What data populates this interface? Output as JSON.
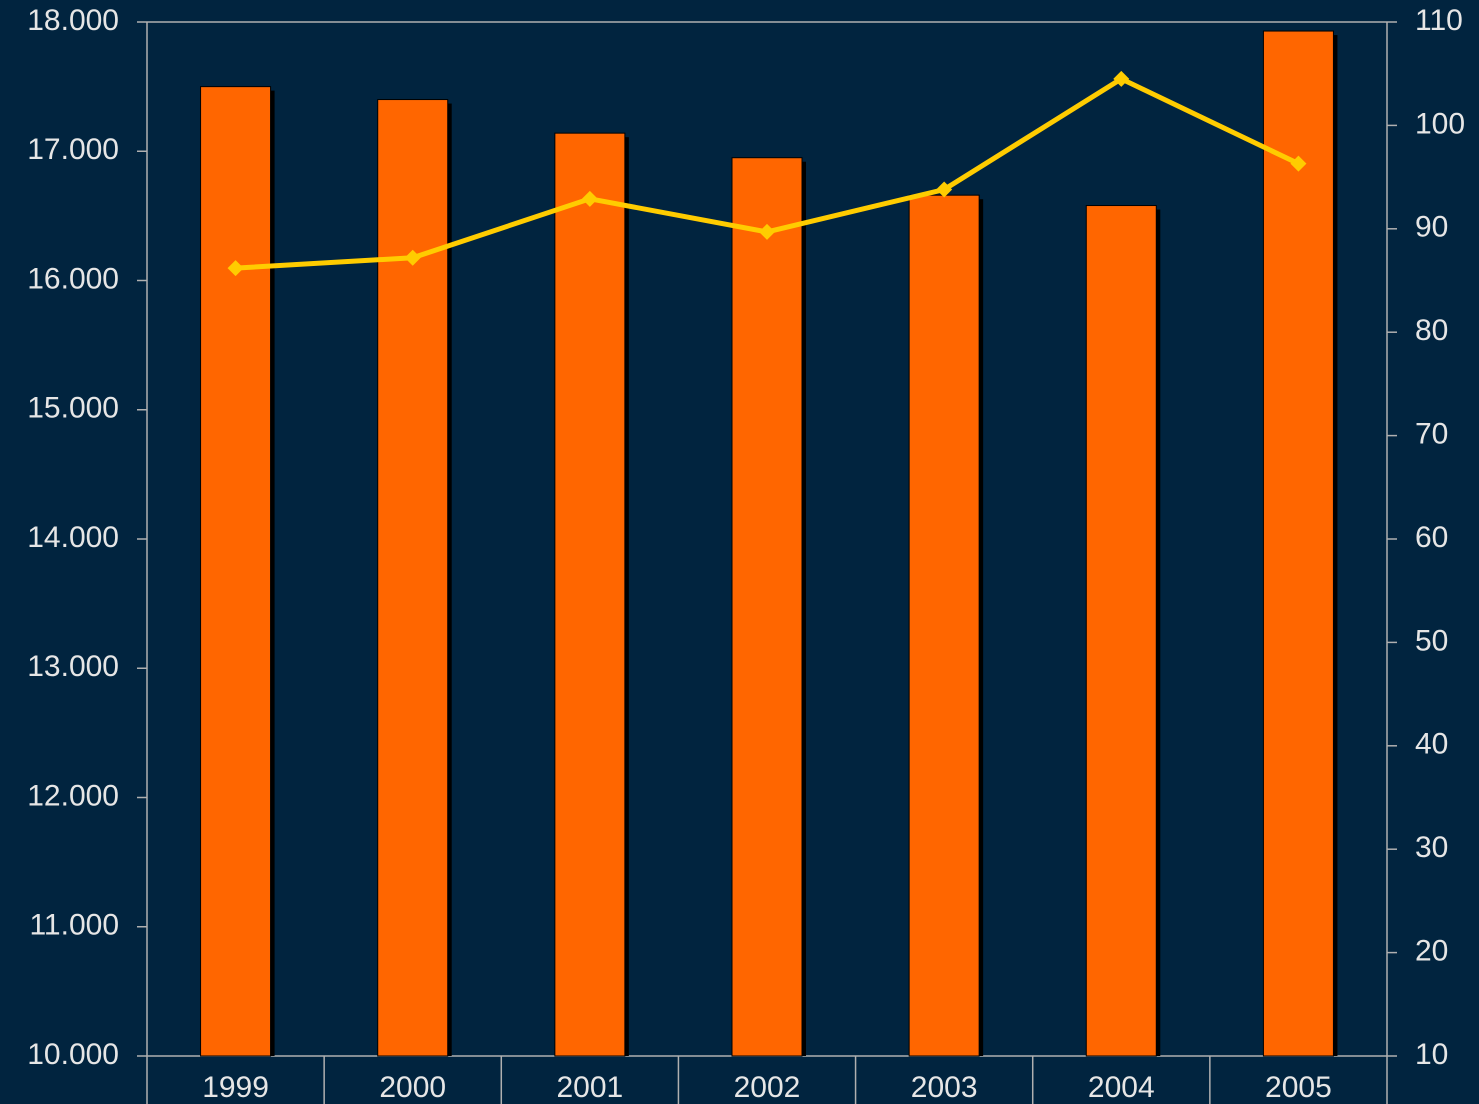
{
  "chart_data": {
    "type": "bar-line",
    "categories": [
      "1999",
      "2000",
      "2001",
      "2002",
      "2003",
      "2004",
      "2005"
    ],
    "series": [
      {
        "type": "bar",
        "color": "#ff6600",
        "values": [
          17500,
          17400,
          17140,
          16950,
          16660,
          16580,
          17930
        ]
      },
      {
        "type": "line",
        "axis": "y2",
        "color": "#ffcc00",
        "values": [
          86.2,
          87.2,
          92.9,
          89.7,
          93.8,
          104.5,
          96.3
        ]
      }
    ],
    "ylim": [
      10000,
      18000
    ],
    "yticks": [
      {
        "value": 10000,
        "label": "10.000"
      },
      {
        "value": 11000,
        "label": "11.000"
      },
      {
        "value": 12000,
        "label": "12.000"
      },
      {
        "value": 13000,
        "label": "13.000"
      },
      {
        "value": 14000,
        "label": "14.000"
      },
      {
        "value": 15000,
        "label": "15.000"
      },
      {
        "value": 16000,
        "label": "16.000"
      },
      {
        "value": 17000,
        "label": "17.000"
      },
      {
        "value": 18000,
        "label": "18.000"
      }
    ],
    "y2lim": [
      10,
      110
    ],
    "y2ticks": [
      10,
      20,
      30,
      40,
      50,
      60,
      70,
      80,
      90,
      100,
      110
    ]
  }
}
